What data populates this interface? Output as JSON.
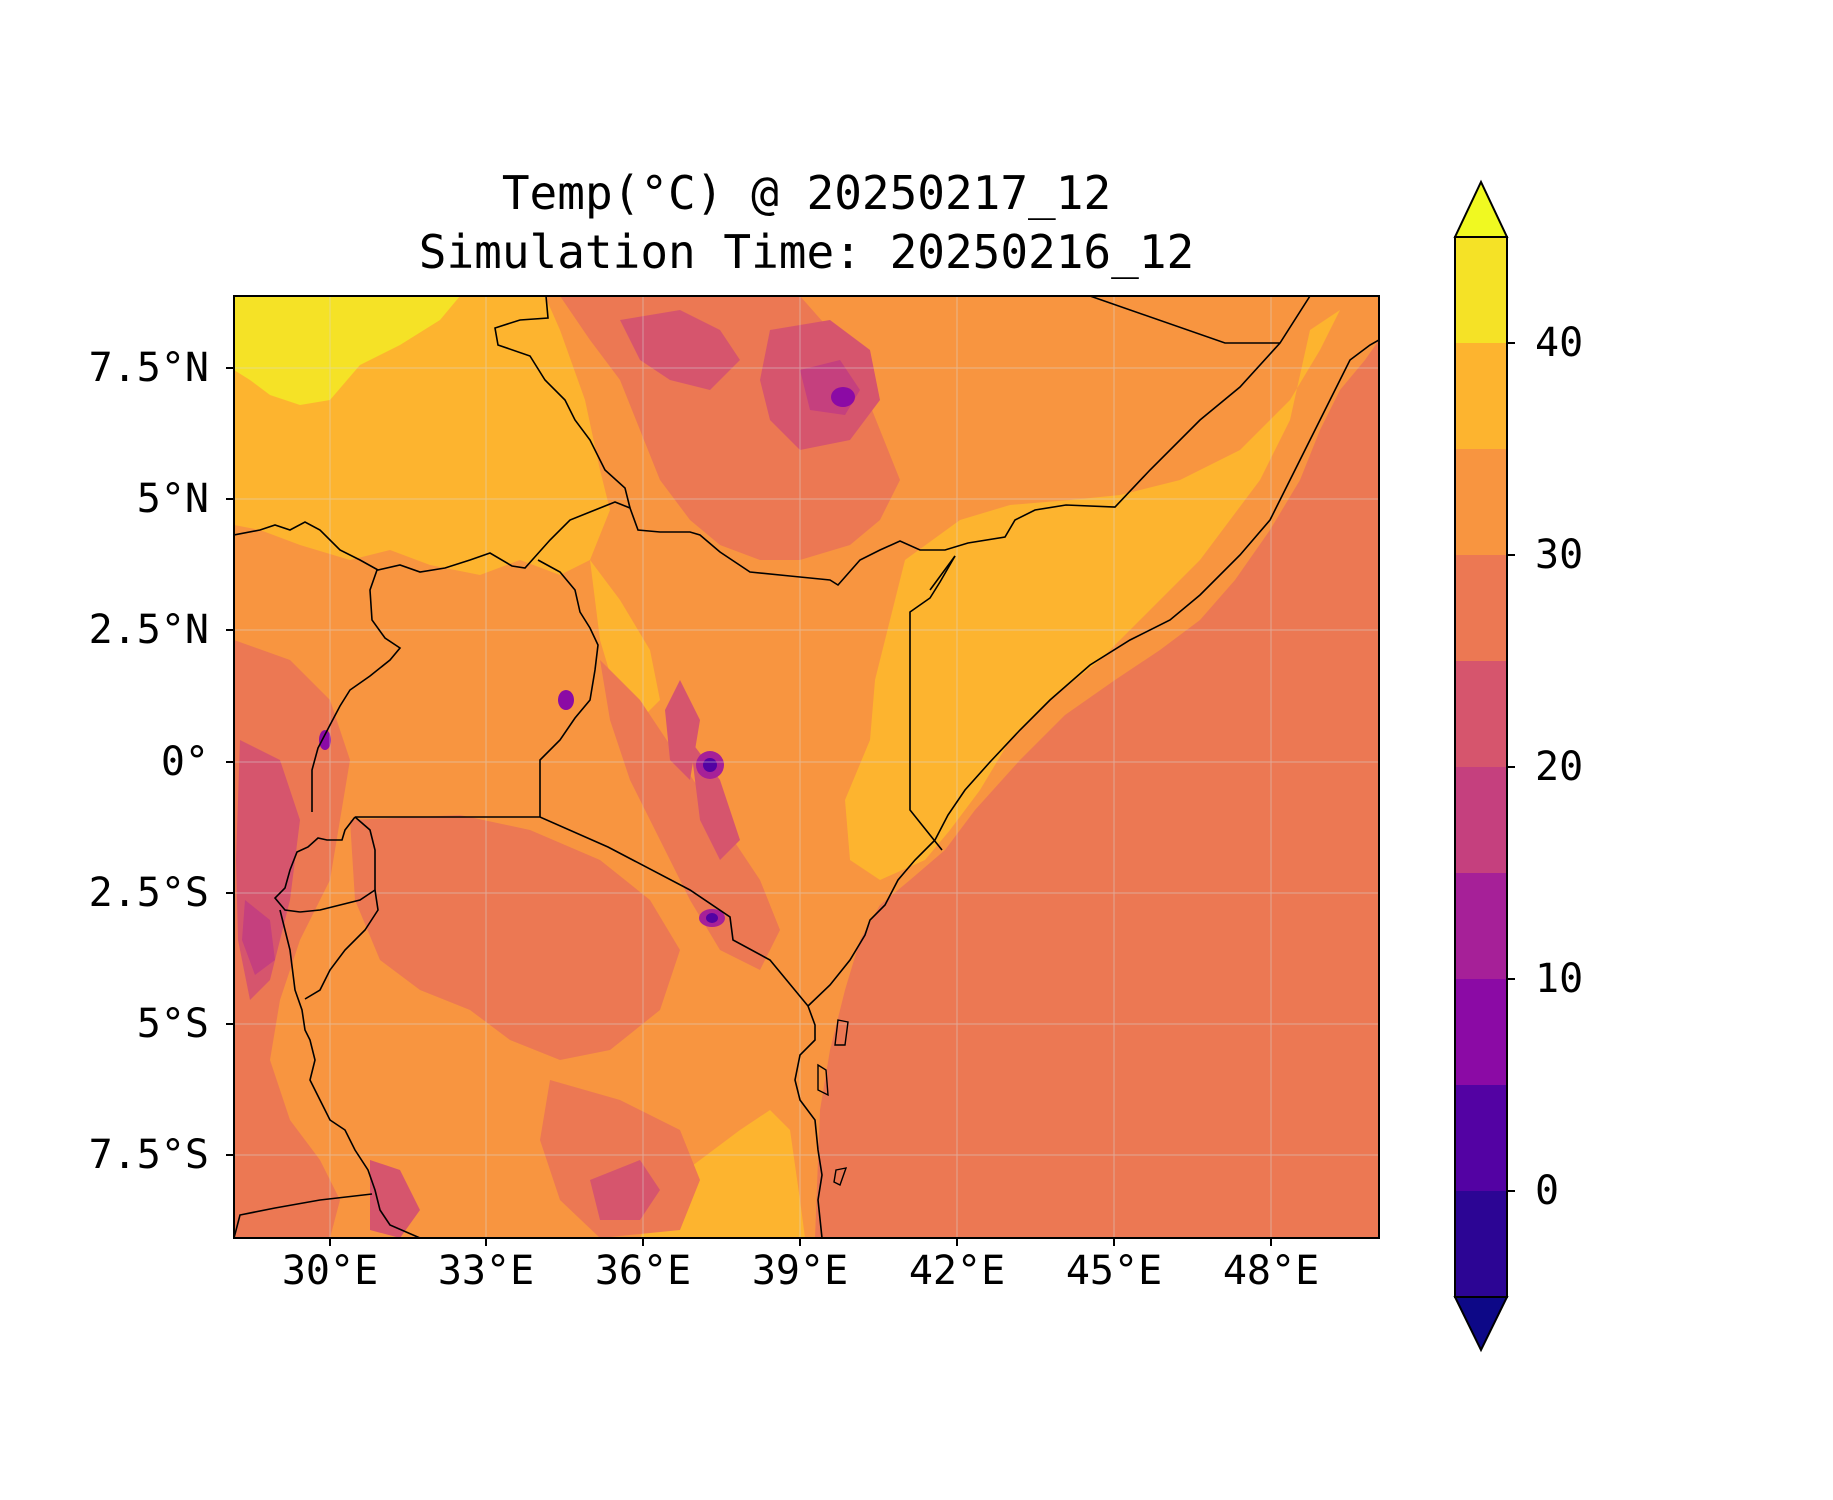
{
  "title": {
    "line1": "Temp(°C) @ 20250217_12",
    "line2": "Simulation Time: 20250216_12"
  },
  "map": {
    "region": "East Africa",
    "projection": "PlateCarree",
    "lon_range": [
      27.5,
      50.5
    ],
    "lat_range": [
      -9.0,
      9.0
    ],
    "lat_ticks": [
      {
        "value": 7.5,
        "label": "7.5°N"
      },
      {
        "value": 5,
        "label": "5°N"
      },
      {
        "value": 2.5,
        "label": "2.5°N"
      },
      {
        "value": 0,
        "label": "0°"
      },
      {
        "value": -2.5,
        "label": "2.5°S"
      },
      {
        "value": -5,
        "label": "5°S"
      },
      {
        "value": -7.5,
        "label": "7.5°S"
      }
    ],
    "lon_ticks": [
      {
        "value": 30,
        "label": "30°E"
      },
      {
        "value": 33,
        "label": "33°E"
      },
      {
        "value": 36,
        "label": "36°E"
      },
      {
        "value": 39,
        "label": "39°E"
      },
      {
        "value": 42,
        "label": "42°E"
      },
      {
        "value": 45,
        "label": "45°E"
      },
      {
        "value": 48,
        "label": "48°E"
      }
    ],
    "ocean_temp_band": "25-30",
    "features": [
      "coastline",
      "country borders",
      "gridlines"
    ]
  },
  "colorbar": {
    "cmap": "plasma",
    "extend": "both",
    "levels": [
      -5,
      0,
      5,
      10,
      15,
      20,
      25,
      30,
      35,
      40,
      45
    ],
    "colors": [
      "#0d0887",
      "#2c0594",
      "#5302a3",
      "#8b0aa5",
      "#a62098",
      "#c5407e",
      "#d6556d",
      "#ec7853",
      "#f89540",
      "#fdb42f",
      "#f5e226",
      "#f0f921"
    ],
    "tick_labels": [
      {
        "value": 0,
        "label": "0"
      },
      {
        "value": 10,
        "label": "10"
      },
      {
        "value": 20,
        "label": "20"
      },
      {
        "value": 30,
        "label": "30"
      },
      {
        "value": 40,
        "label": "40"
      }
    ]
  }
}
